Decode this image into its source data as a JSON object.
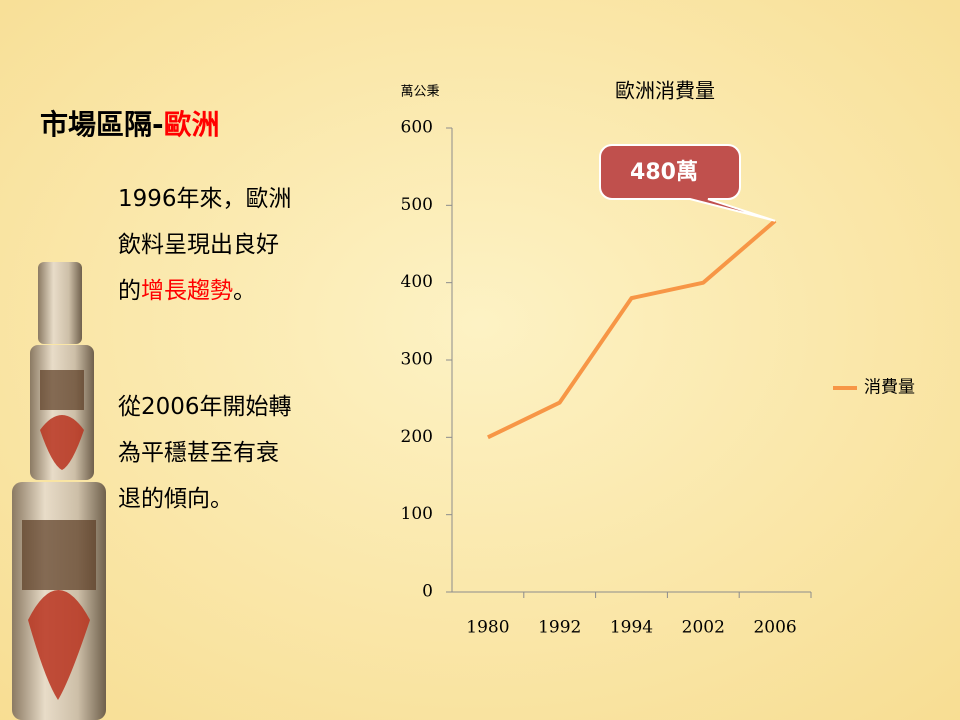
{
  "slide": {
    "title": [
      {
        "text": "市場區隔-",
        "color": "#000000"
      },
      {
        "text": "歐洲",
        "color": "#ff0000"
      }
    ],
    "paragraphs": [
      [
        [
          {
            "text": "1996年來，歐洲"
          }
        ],
        [
          {
            "text": "飲料呈現出良好"
          }
        ],
        [
          {
            "text": "的"
          },
          {
            "text": "增長趨勢",
            "color": "#ff0000"
          },
          {
            "text": "。"
          }
        ]
      ],
      [
        [
          {
            "text": "從2006年開始轉"
          }
        ],
        [
          {
            "text": "為平穩甚至有衰"
          }
        ],
        [
          {
            "text": "退的傾向。"
          }
        ]
      ]
    ]
  },
  "chart_data": {
    "type": "line",
    "title": "歐洲消費量",
    "y_label": "萬公秉",
    "categories": [
      "1980",
      "1992",
      "1994",
      "2002",
      "2006"
    ],
    "series": [
      {
        "name": "消費量",
        "color": "#f79646",
        "values": [
          200,
          245,
          380,
          400,
          480
        ]
      }
    ],
    "ylim": [
      0,
      600
    ],
    "yticks": [
      0,
      100,
      200,
      300,
      400,
      500,
      600
    ],
    "annotation": {
      "text": "480萬",
      "point": 4,
      "color": "#c0504d"
    },
    "legend": "right",
    "grid": false
  }
}
